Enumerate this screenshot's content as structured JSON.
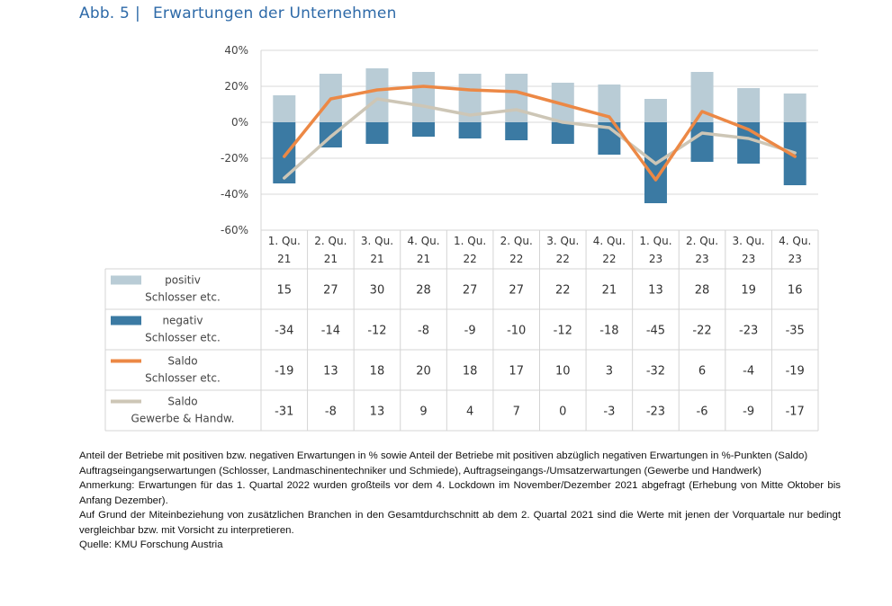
{
  "figure": {
    "number": "Abb. 5",
    "separator": "|",
    "title": "Erwartungen der Unternehmen"
  },
  "chart_data": {
    "type": "bar",
    "categories": [
      [
        "1. Qu.",
        "21"
      ],
      [
        "2. Qu.",
        "21"
      ],
      [
        "3. Qu.",
        "21"
      ],
      [
        "4. Qu.",
        "21"
      ],
      [
        "1. Qu.",
        "22"
      ],
      [
        "2. Qu.",
        "22"
      ],
      [
        "3. Qu.",
        "22"
      ],
      [
        "4. Qu.",
        "22"
      ],
      [
        "1. Qu.",
        "23"
      ],
      [
        "2. Qu.",
        "23"
      ],
      [
        "3. Qu.",
        "23"
      ],
      [
        "4. Qu.",
        "23"
      ]
    ],
    "ylim": [
      -60,
      40
    ],
    "yticks": [
      "40%",
      "20%",
      "0%",
      "-20%",
      "-40%",
      "-60%"
    ],
    "grid": true,
    "series": [
      {
        "name_lines": [
          "positiv",
          "Schlosser etc."
        ],
        "type": "bar",
        "color": "#b9ccd6",
        "values": [
          15,
          27,
          30,
          28,
          27,
          27,
          22,
          21,
          13,
          28,
          19,
          16
        ],
        "labels": [
          "15",
          "27",
          "30",
          "28",
          "27",
          "27",
          "22",
          "21",
          "13",
          "28",
          "19",
          "16"
        ]
      },
      {
        "name_lines": [
          "negativ",
          "Schlosser etc."
        ],
        "type": "bar",
        "color": "#3b7aa3",
        "values": [
          -34,
          -14,
          -12,
          -8,
          -9,
          -10,
          -12,
          -18,
          -45,
          -22,
          -23,
          -35
        ],
        "labels": [
          "-34",
          "-14",
          "-12",
          "-8",
          "-9",
          "-10",
          "-12",
          "-18",
          "-45",
          "-22",
          "-23",
          "-35"
        ]
      },
      {
        "name_lines": [
          "Saldo",
          "Schlosser etc."
        ],
        "type": "line",
        "color": "#ec8845",
        "values": [
          -19,
          13,
          18,
          20,
          18,
          17,
          10,
          3,
          -32,
          6,
          -4,
          -19
        ],
        "labels": [
          "-19",
          "13",
          "18",
          "20",
          "18",
          "17",
          "10",
          "3",
          "-32",
          "6",
          "-4",
          "-19"
        ]
      },
      {
        "name_lines": [
          "Saldo",
          "Gewerbe & Handw."
        ],
        "type": "line",
        "color": "#cdc6b6",
        "values": [
          -31,
          -8,
          13,
          9,
          4,
          7,
          0,
          -3,
          -23,
          -6,
          -9,
          -17
        ],
        "labels": [
          "-31",
          "-8",
          "13",
          "9",
          "4",
          "7",
          "0",
          "-3",
          "-23",
          "-6",
          "-9",
          "-17"
        ]
      }
    ]
  },
  "notes": [
    "Anteil der Betriebe mit positiven bzw. negativen Erwartungen in % sowie Anteil der Betriebe mit positiven abzüglich negativen Erwartungen in %-Punkten (Saldo)",
    "Auftragseingangserwartungen (Schlosser, Landmaschinentechniker und Schmiede), Auftragseingangs-/Umsatzerwartungen (Gewerbe und Handwerk)",
    "Anmerkung: Erwartungen für das 1. Quartal 2022 wurden großteils vor dem 4. Lockdown im November/Dezember 2021 abgefragt (Erhebung von Mitte Oktober bis Anfang Dezember).",
    "Auf Grund der Miteinbeziehung von zusätzlichen Branchen in den Gesamtdurchschnitt ab dem 2. Quartal 2021 sind die Werte mit jenen der Vorquartale nur bedingt vergleichbar bzw. mit Vorsicht zu interpretieren.",
    "Quelle: KMU Forschung Austria"
  ]
}
